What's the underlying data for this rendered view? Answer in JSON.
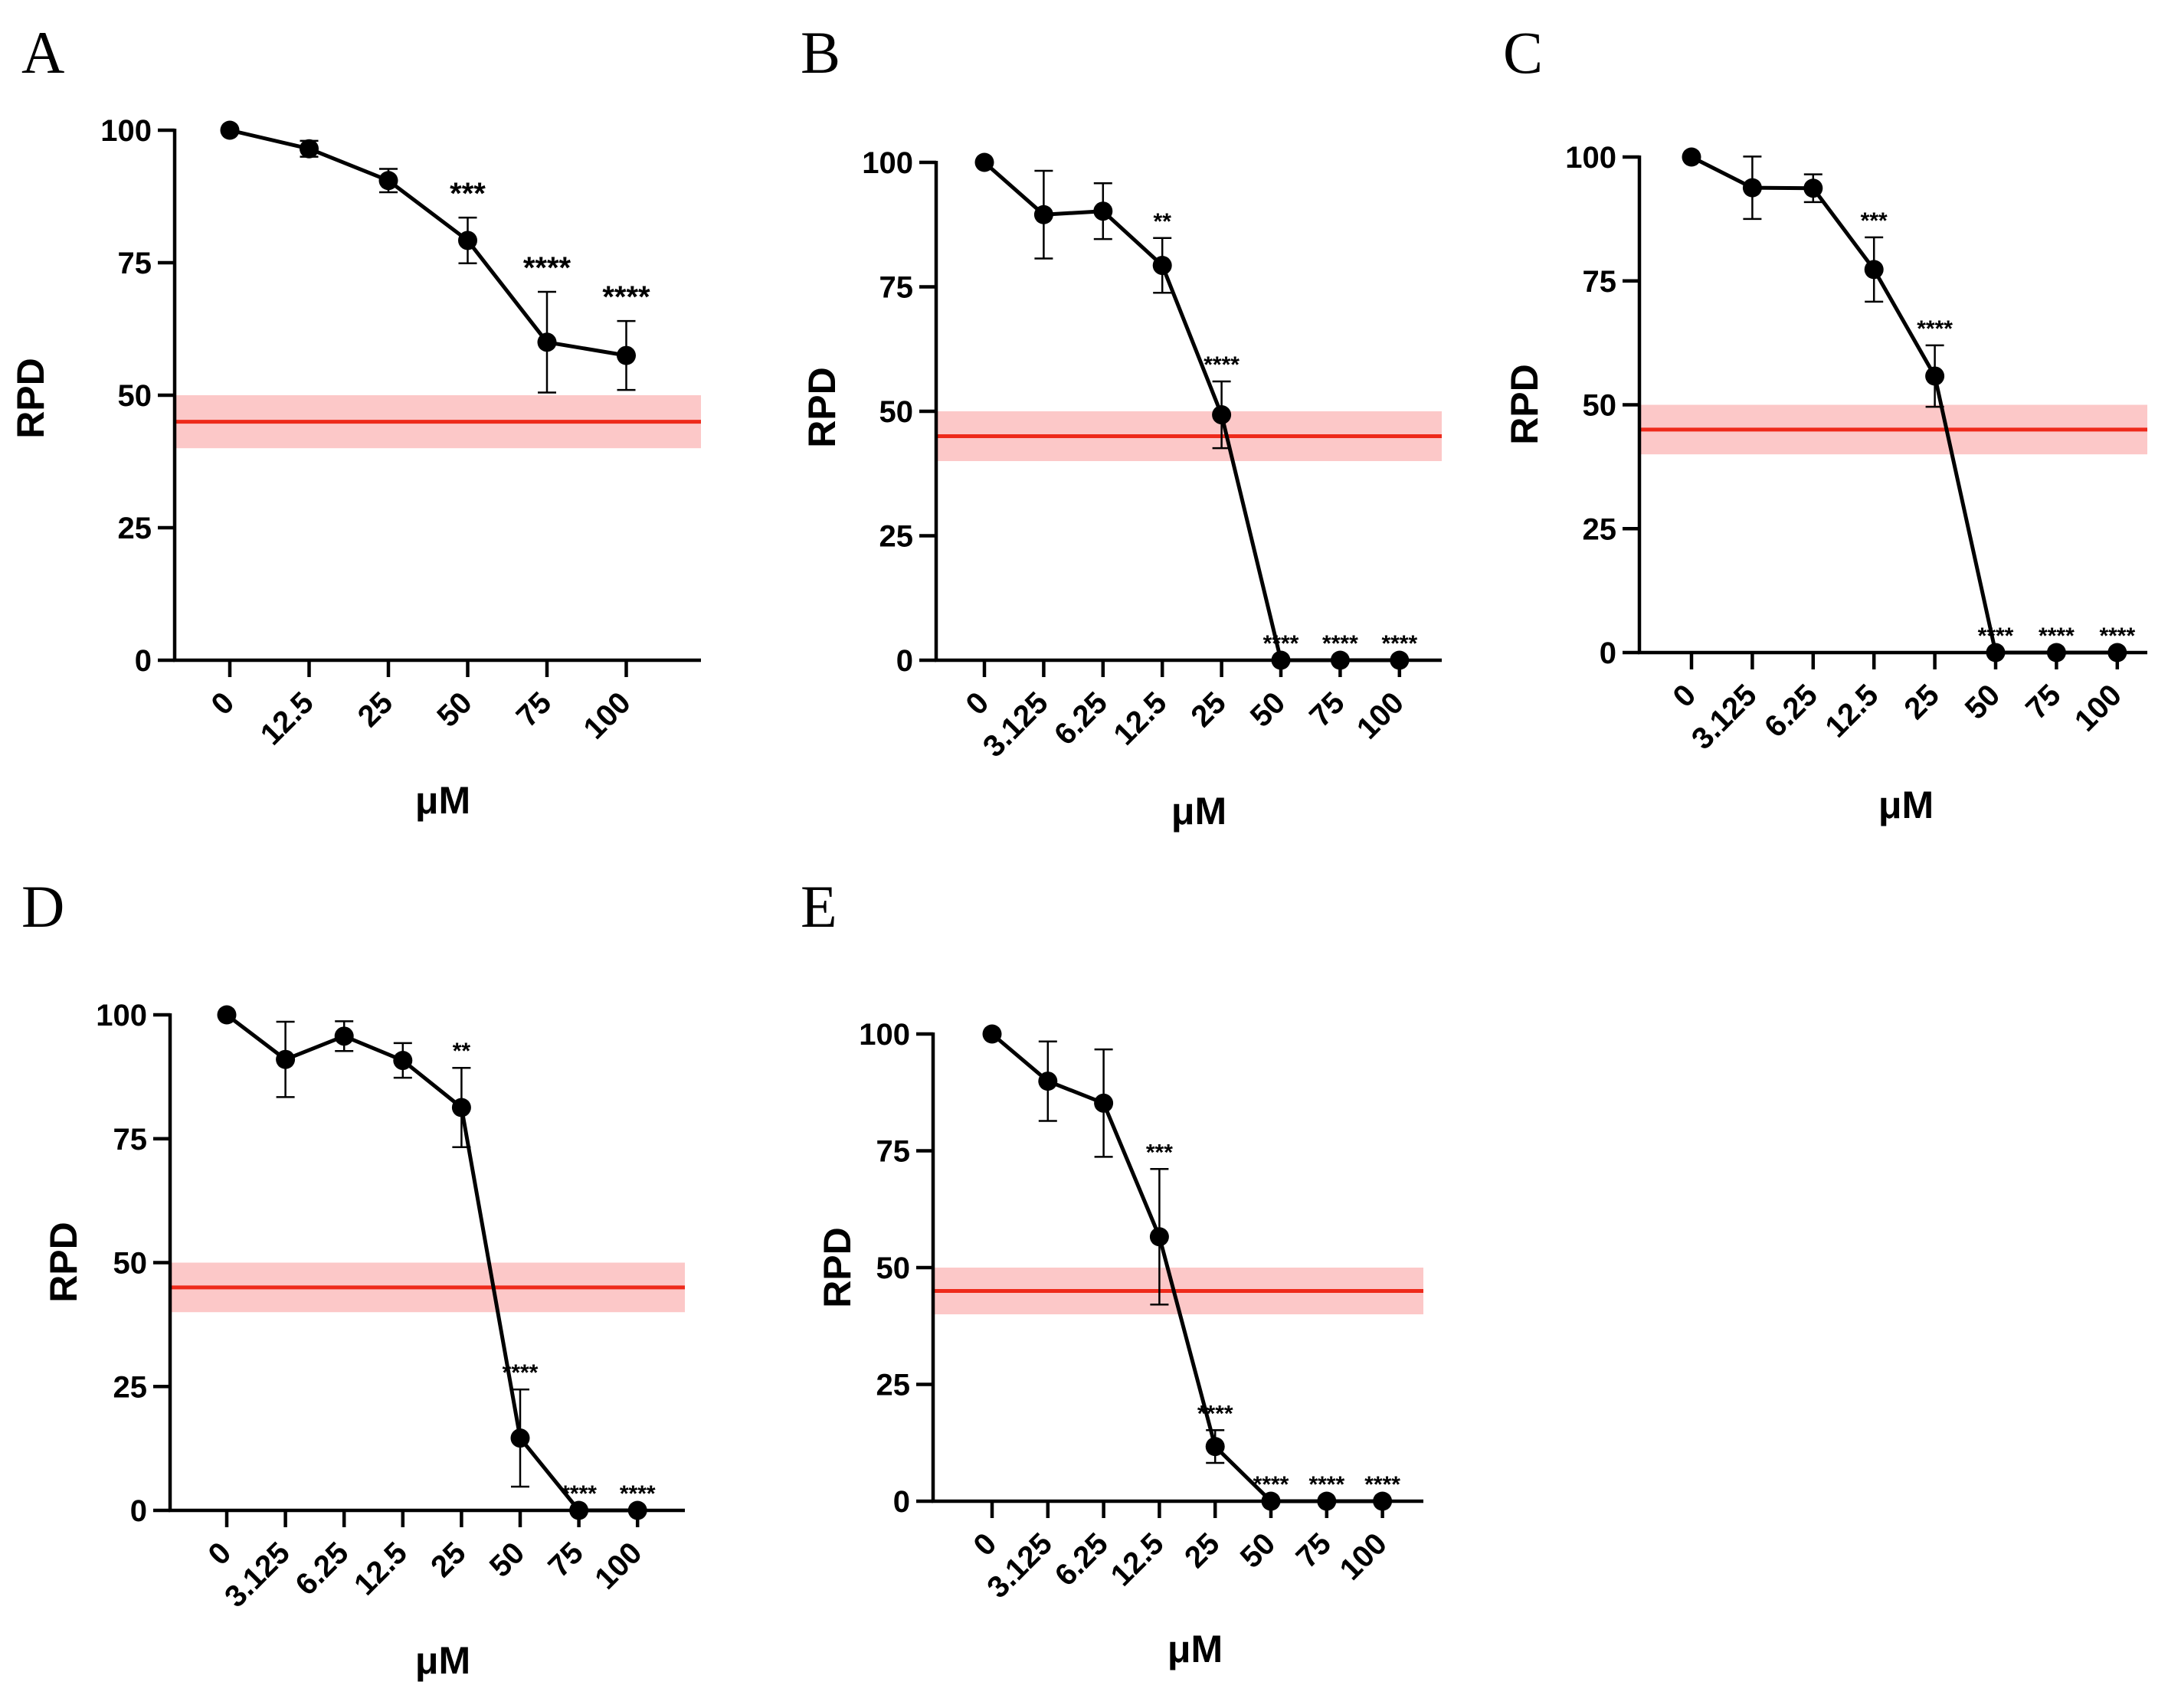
{
  "colors": {
    "line": "#000000",
    "reference_line": "#ee2a1b",
    "reference_band": "#fcc8c8"
  },
  "chart_data": [
    {
      "panel": "A",
      "type": "line",
      "categories": [
        "0",
        "12.5",
        "25",
        "50",
        "75",
        "100"
      ],
      "values": [
        100,
        96.5,
        90.5,
        79.2,
        60,
        57.5
      ],
      "errors": [
        0,
        1.5,
        2.2,
        4.3,
        9.5,
        6.5
      ],
      "significance": [
        "",
        "",
        "",
        "***",
        "****",
        "****"
      ],
      "xlabel": "μM",
      "ylabel": "RPD",
      "ylim": [
        0,
        100
      ],
      "yticks": [
        0,
        25,
        50,
        75,
        100
      ],
      "reference": {
        "value": 45,
        "band": [
          40,
          50
        ]
      }
    },
    {
      "panel": "B",
      "type": "line",
      "categories": [
        "0",
        "3.125",
        "6.25",
        "12.5",
        "25",
        "50",
        "75",
        "100"
      ],
      "values": [
        100,
        89.5,
        90.2,
        79.3,
        49.3,
        0,
        0,
        0
      ],
      "errors": [
        0,
        8.8,
        5.6,
        5.5,
        6.7,
        0,
        0,
        0
      ],
      "significance": [
        "",
        "",
        "",
        "**",
        "****",
        "****",
        "****",
        "****"
      ],
      "xlabel": "μM",
      "ylabel": "RPD",
      "ylim": [
        0,
        100
      ],
      "yticks": [
        0,
        25,
        50,
        75,
        100
      ],
      "reference": {
        "value": 45,
        "band": [
          40,
          50
        ]
      }
    },
    {
      "panel": "C",
      "type": "line",
      "categories": [
        "0",
        "3.125",
        "6.25",
        "12.5",
        "25",
        "50",
        "75",
        "100"
      ],
      "values": [
        100,
        93.8,
        93.7,
        77.3,
        55.8,
        0,
        0,
        0
      ],
      "errors": [
        0,
        6.3,
        2.8,
        6.5,
        6.2,
        0,
        0,
        0
      ],
      "significance": [
        "",
        "",
        "",
        "***",
        "****",
        "****",
        "****",
        "****"
      ],
      "xlabel": "μM",
      "ylabel": "RPD",
      "ylim": [
        0,
        100
      ],
      "yticks": [
        0,
        25,
        50,
        75,
        100
      ],
      "reference": {
        "value": 45,
        "band": [
          40,
          50
        ]
      }
    },
    {
      "panel": "D",
      "type": "line",
      "categories": [
        "0",
        "3.125",
        "6.25",
        "12.5",
        "25",
        "50",
        "75",
        "100"
      ],
      "values": [
        100,
        91,
        95.7,
        90.8,
        81.3,
        14.6,
        0,
        0
      ],
      "errors": [
        0,
        7.6,
        3.0,
        3.5,
        8.0,
        9.8,
        0,
        0
      ],
      "significance": [
        "",
        "",
        "",
        "",
        "**",
        "****",
        "****",
        "****"
      ],
      "xlabel": "μM",
      "ylabel": "RPD",
      "ylim": [
        0,
        100
      ],
      "yticks": [
        0,
        25,
        50,
        75,
        100
      ],
      "reference": {
        "value": 45,
        "band": [
          40,
          50
        ]
      }
    },
    {
      "panel": "E",
      "type": "line",
      "categories": [
        "0",
        "3.125",
        "6.25",
        "12.5",
        "25",
        "50",
        "75",
        "100"
      ],
      "values": [
        100,
        89.9,
        85.2,
        56.6,
        11.7,
        0,
        0,
        0
      ],
      "errors": [
        0,
        8.5,
        11.5,
        14.5,
        3.5,
        0,
        0,
        0
      ],
      "significance": [
        "",
        "",
        "",
        "***",
        "****",
        "****",
        "****",
        "****"
      ],
      "xlabel": "μM",
      "ylabel": "RPD",
      "ylim": [
        0,
        100
      ],
      "yticks": [
        0,
        25,
        50,
        75,
        100
      ],
      "reference": {
        "value": 45,
        "band": [
          40,
          50
        ]
      }
    }
  ]
}
